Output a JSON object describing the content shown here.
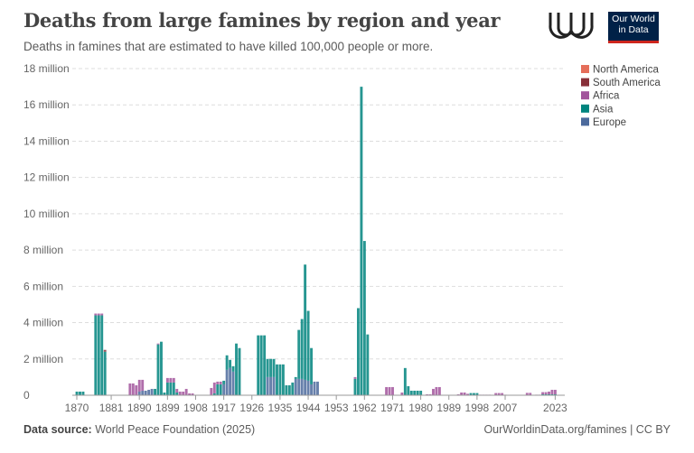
{
  "header": {
    "title": "Deaths from large famines by region and year",
    "subtitle": "Deaths in famines that are estimated to have killed 100,000 people or more.",
    "logo_text": "Our World in Data"
  },
  "footer": {
    "source_label": "Data source:",
    "source": "World Peace Foundation (2025)",
    "link": "OurWorldinData.org/famines | CC BY"
  },
  "chart_data": {
    "type": "bar",
    "stacked": true,
    "title": "Deaths from large famines by region and year",
    "xlabel": "",
    "ylabel": "",
    "ylim": [
      0,
      18000000
    ],
    "xlim": [
      1870,
      2023
    ],
    "y_ticks": [
      {
        "v": 0,
        "label": "0"
      },
      {
        "v": 2000000,
        "label": "2 million"
      },
      {
        "v": 4000000,
        "label": "4 million"
      },
      {
        "v": 6000000,
        "label": "6 million"
      },
      {
        "v": 8000000,
        "label": "8 million"
      },
      {
        "v": 10000000,
        "label": "10 million"
      },
      {
        "v": 12000000,
        "label": "12 million"
      },
      {
        "v": 14000000,
        "label": "14 million"
      },
      {
        "v": 16000000,
        "label": "16 million"
      },
      {
        "v": 18000000,
        "label": "18 million"
      }
    ],
    "x_ticks": [
      1870,
      1881,
      1890,
      1899,
      1908,
      1917,
      1926,
      1935,
      1944,
      1953,
      1962,
      1971,
      1980,
      1989,
      1998,
      2007,
      2023
    ],
    "grid": "horizontal dashed",
    "legend_position": "right",
    "series": [
      {
        "name": "North America",
        "color": "#e56e5a"
      },
      {
        "name": "South America",
        "color": "#883039"
      },
      {
        "name": "Africa",
        "color": "#a2559c"
      },
      {
        "name": "Asia",
        "color": "#00847e"
      },
      {
        "name": "Europe",
        "color": "#4c6a9c"
      }
    ],
    "unit": "million deaths",
    "data": [
      {
        "year": 1870,
        "Asia": 0.2
      },
      {
        "year": 1871,
        "Asia": 0.2
      },
      {
        "year": 1872,
        "Asia": 0.2
      },
      {
        "year": 1876,
        "Asia": 4.4,
        "Africa": 0.1
      },
      {
        "year": 1877,
        "Asia": 4.4,
        "Africa": 0.1
      },
      {
        "year": 1878,
        "Asia": 4.4,
        "Africa": 0.1
      },
      {
        "year": 1879,
        "Asia": 2.4,
        "South America": 0.1
      },
      {
        "year": 1887,
        "Africa": 0.65
      },
      {
        "year": 1888,
        "Africa": 0.65
      },
      {
        "year": 1889,
        "Africa": 0.55
      },
      {
        "year": 1890,
        "Europe": 0.2,
        "Africa": 0.65
      },
      {
        "year": 1891,
        "Europe": 0.25,
        "Africa": 0.6
      },
      {
        "year": 1892,
        "Europe": 0.25
      },
      {
        "year": 1893,
        "Europe": 0.3
      },
      {
        "year": 1894,
        "Europe": 0.35
      },
      {
        "year": 1895,
        "Asia": 0.35
      },
      {
        "year": 1896,
        "Asia": 2.8,
        "Africa": 0.05
      },
      {
        "year": 1897,
        "Asia": 2.95
      },
      {
        "year": 1898,
        "Asia": 0.15
      },
      {
        "year": 1899,
        "Asia": 0.7,
        "Africa": 0.25
      },
      {
        "year": 1900,
        "Asia": 0.7,
        "Africa": 0.25
      },
      {
        "year": 1901,
        "Asia": 0.7,
        "Africa": 0.25
      },
      {
        "year": 1902,
        "Asia": 0.15,
        "Africa": 0.2
      },
      {
        "year": 1903,
        "Africa": 0.2
      },
      {
        "year": 1904,
        "Africa": 0.2
      },
      {
        "year": 1905,
        "Africa": 0.35
      },
      {
        "year": 1906,
        "Africa": 0.1
      },
      {
        "year": 1907,
        "Africa": 0.1
      },
      {
        "year": 1913,
        "Africa": 0.4
      },
      {
        "year": 1914,
        "Asia": 0.1,
        "Africa": 0.6
      },
      {
        "year": 1915,
        "Asia": 0.6,
        "Africa": 0.15
      },
      {
        "year": 1916,
        "Asia": 0.6,
        "Africa": 0.15
      },
      {
        "year": 1917,
        "Europe": 0.6,
        "Asia": 0.2
      },
      {
        "year": 1918,
        "Europe": 1.4,
        "Asia": 0.8
      },
      {
        "year": 1919,
        "Europe": 1.5,
        "Asia": 0.45
      },
      {
        "year": 1920,
        "Europe": 1.3,
        "Asia": 0.3
      },
      {
        "year": 1921,
        "Asia": 2.85
      },
      {
        "year": 1922,
        "Asia": 2.6
      },
      {
        "year": 1928,
        "Asia": 3.3
      },
      {
        "year": 1929,
        "Asia": 3.3
      },
      {
        "year": 1930,
        "Asia": 3.3
      },
      {
        "year": 1931,
        "Europe": 1.0,
        "Asia": 1.0
      },
      {
        "year": 1932,
        "Europe": 1.0,
        "Asia": 1.0
      },
      {
        "year": 1933,
        "Europe": 1.0,
        "Asia": 1.0
      },
      {
        "year": 1934,
        "Asia": 1.7
      },
      {
        "year": 1935,
        "Asia": 1.7
      },
      {
        "year": 1936,
        "Asia": 1.7
      },
      {
        "year": 1937,
        "Asia": 0.55
      },
      {
        "year": 1938,
        "Asia": 0.55
      },
      {
        "year": 1939,
        "Asia": 0.7
      },
      {
        "year": 1940,
        "Europe": 0.9,
        "Asia": 0.1
      },
      {
        "year": 1941,
        "Europe": 0.9,
        "Asia": 2.7
      },
      {
        "year": 1942,
        "Europe": 0.9,
        "Asia": 3.3
      },
      {
        "year": 1943,
        "Europe": 0.85,
        "Asia": 6.35
      },
      {
        "year": 1944,
        "Europe": 0.8,
        "Asia": 3.85
      },
      {
        "year": 1945,
        "Europe": 0.6,
        "Asia": 2.0
      },
      {
        "year": 1946,
        "Europe": 0.75
      },
      {
        "year": 1947,
        "Europe": 0.75
      },
      {
        "year": 1959,
        "Asia": 0.9,
        "Africa": 0.1
      },
      {
        "year": 1960,
        "Asia": 4.8
      },
      {
        "year": 1961,
        "Asia": 17.0
      },
      {
        "year": 1962,
        "Asia": 8.5
      },
      {
        "year": 1963,
        "Asia": 3.35
      },
      {
        "year": 1969,
        "Africa": 0.45
      },
      {
        "year": 1970,
        "Africa": 0.45
      },
      {
        "year": 1971,
        "Africa": 0.45
      },
      {
        "year": 1974,
        "Africa": 0.15
      },
      {
        "year": 1975,
        "Asia": 1.5
      },
      {
        "year": 1976,
        "Asia": 0.5
      },
      {
        "year": 1977,
        "Asia": 0.25
      },
      {
        "year": 1978,
        "Asia": 0.25
      },
      {
        "year": 1979,
        "Asia": 0.25
      },
      {
        "year": 1980,
        "Asia": 0.25
      },
      {
        "year": 1982,
        "Africa": 0.05
      },
      {
        "year": 1983,
        "Africa": 0.05
      },
      {
        "year": 1984,
        "Africa": 0.35
      },
      {
        "year": 1985,
        "Africa": 0.45
      },
      {
        "year": 1986,
        "Africa": 0.45
      },
      {
        "year": 1992,
        "Africa": 0.05
      },
      {
        "year": 1993,
        "Africa": 0.15
      },
      {
        "year": 1994,
        "Africa": 0.15
      },
      {
        "year": 1995,
        "Africa": 0.08
      },
      {
        "year": 1996,
        "Asia": 0.12
      },
      {
        "year": 1997,
        "Asia": 0.12
      },
      {
        "year": 1998,
        "Asia": 0.12
      },
      {
        "year": 1999,
        "Africa": 0.03
      },
      {
        "year": 2000,
        "Africa": 0.03
      },
      {
        "year": 2001,
        "Africa": 0.03
      },
      {
        "year": 2002,
        "Africa": 0.03
      },
      {
        "year": 2004,
        "Africa": 0.12
      },
      {
        "year": 2005,
        "Africa": 0.12
      },
      {
        "year": 2006,
        "Africa": 0.12
      },
      {
        "year": 2007,
        "Africa": 0.03
      },
      {
        "year": 2014,
        "Africa": 0.13
      },
      {
        "year": 2015,
        "Africa": 0.13
      },
      {
        "year": 2017,
        "Africa": 0.03
      },
      {
        "year": 2018,
        "Africa": 0.03
      },
      {
        "year": 2019,
        "Asia": 0.05,
        "Africa": 0.12
      },
      {
        "year": 2020,
        "Asia": 0.05,
        "Africa": 0.12
      },
      {
        "year": 2021,
        "Asia": 0.05,
        "Africa": 0.15
      },
      {
        "year": 2022,
        "Asia": 0.05,
        "Africa": 0.25
      },
      {
        "year": 2023,
        "Asia": 0.05,
        "Africa": 0.25
      }
    ]
  }
}
